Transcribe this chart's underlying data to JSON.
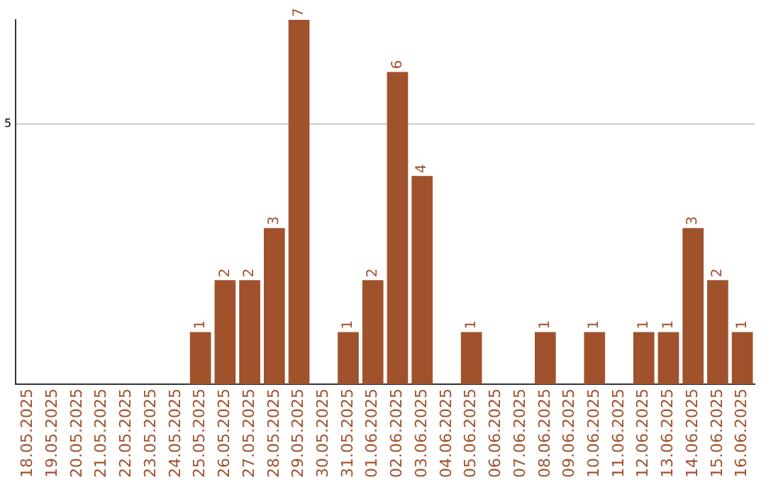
{
  "chart_data": {
    "type": "bar",
    "categories": [
      "18.05.2025",
      "19.05.2025",
      "20.05.2025",
      "21.05.2025",
      "22.05.2025",
      "23.05.2025",
      "24.05.2025",
      "25.05.2025",
      "26.05.2025",
      "27.05.2025",
      "28.05.2025",
      "29.05.2025",
      "30.05.2025",
      "31.05.2025",
      "01.06.2025",
      "02.06.2025",
      "03.06.2025",
      "04.06.2025",
      "05.06.2025",
      "06.06.2025",
      "07.06.2025",
      "08.06.2025",
      "09.06.2025",
      "10.06.2025",
      "11.06.2025",
      "12.06.2025",
      "13.06.2025",
      "14.06.2025",
      "15.06.2025",
      "16.06.2025"
    ],
    "values": [
      0,
      0,
      0,
      0,
      0,
      0,
      0,
      1,
      2,
      2,
      3,
      7,
      0,
      1,
      2,
      6,
      4,
      0,
      1,
      0,
      0,
      1,
      0,
      1,
      0,
      1,
      1,
      3,
      2,
      1
    ],
    "value_labels": [
      null,
      null,
      null,
      null,
      null,
      null,
      null,
      "1",
      "2",
      "2",
      "3",
      "7",
      null,
      "1",
      "2",
      "6",
      "4",
      null,
      "1",
      null,
      null,
      "1",
      null,
      "1",
      null,
      "1",
      "1",
      "3",
      "2",
      "1"
    ],
    "color": "#a0522d",
    "ylim": [
      0,
      7
    ],
    "yticks": [
      5
    ],
    "grid": "y",
    "legend": false
  }
}
